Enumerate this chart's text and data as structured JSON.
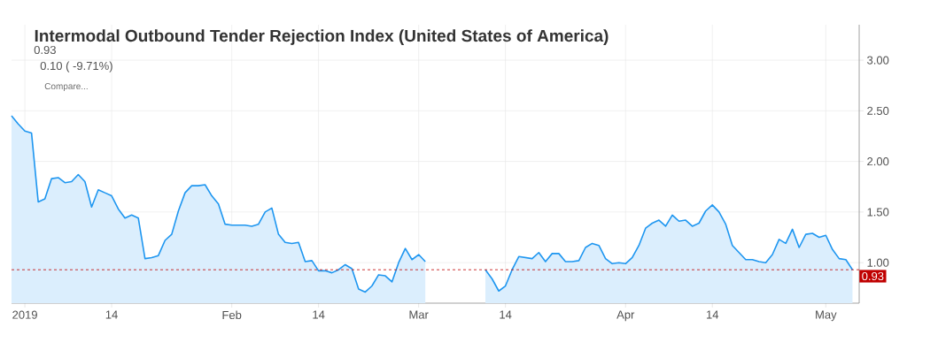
{
  "chart_data": {
    "type": "area",
    "title": "Intermodal Outbound Tender Rejection Index (United States of America)",
    "annotations": [
      "0.93",
      "0.10 ( -9.71%)",
      "Compare..."
    ],
    "x": [
      "2018-12-30",
      "2018-12-31",
      "2019-01-01",
      "2019-01-02",
      "2019-01-03",
      "2019-01-04",
      "2019-01-05",
      "2019-01-06",
      "2019-01-07",
      "2019-01-08",
      "2019-01-09",
      "2019-01-10",
      "2019-01-11",
      "2019-01-12",
      "2019-01-13",
      "2019-01-14",
      "2019-01-15",
      "2019-01-16",
      "2019-01-17",
      "2019-01-18",
      "2019-01-19",
      "2019-01-20",
      "2019-01-21",
      "2019-01-22",
      "2019-01-23",
      "2019-01-24",
      "2019-01-25",
      "2019-01-26",
      "2019-01-27",
      "2019-01-28",
      "2019-01-29",
      "2019-01-30",
      "2019-01-31",
      "2019-02-01",
      "2019-02-02",
      "2019-02-03",
      "2019-02-04",
      "2019-02-05",
      "2019-02-06",
      "2019-02-07",
      "2019-02-08",
      "2019-02-09",
      "2019-02-10",
      "2019-02-11",
      "2019-02-12",
      "2019-02-13",
      "2019-02-14",
      "2019-02-15",
      "2019-02-16",
      "2019-02-17",
      "2019-02-18",
      "2019-02-19",
      "2019-02-20",
      "2019-02-21",
      "2019-02-22",
      "2019-02-23",
      "2019-02-24",
      "2019-02-25",
      "2019-02-26",
      "2019-02-27",
      "2019-02-28",
      "2019-03-01",
      "2019-03-02",
      "2019-03-03",
      "2019-03-04",
      "2019-03-05",
      "2019-03-06",
      "2019-03-07",
      "2019-03-08",
      "2019-03-09",
      "2019-03-10",
      "2019-03-11",
      "2019-03-12",
      "2019-03-13",
      "2019-03-14",
      "2019-03-15",
      "2019-03-16",
      "2019-03-17",
      "2019-03-18",
      "2019-03-19",
      "2019-03-20",
      "2019-03-21",
      "2019-03-22",
      "2019-03-23",
      "2019-03-24",
      "2019-03-25",
      "2019-03-26",
      "2019-03-27",
      "2019-03-28",
      "2019-03-29",
      "2019-03-30",
      "2019-03-31",
      "2019-04-01",
      "2019-04-02",
      "2019-04-03",
      "2019-04-04",
      "2019-04-05",
      "2019-04-06",
      "2019-04-07",
      "2019-04-08",
      "2019-04-09",
      "2019-04-10",
      "2019-04-11",
      "2019-04-12",
      "2019-04-13",
      "2019-04-14",
      "2019-04-15",
      "2019-04-16",
      "2019-04-17",
      "2019-04-18",
      "2019-04-19",
      "2019-04-20",
      "2019-04-21",
      "2019-04-22",
      "2019-04-23",
      "2019-04-24",
      "2019-04-25",
      "2019-04-26",
      "2019-04-27",
      "2019-04-28",
      "2019-04-29",
      "2019-04-30",
      "2019-05-01",
      "2019-05-02",
      "2019-05-03",
      "2019-05-04",
      "2019-05-05"
    ],
    "series": [
      {
        "color": "#1e96f0",
        "values": [
          2.45,
          2.37,
          2.3,
          2.28,
          1.6,
          1.63,
          1.83,
          1.84,
          1.79,
          1.8,
          1.87,
          1.8,
          1.55,
          1.72,
          1.69,
          1.66,
          1.53,
          1.44,
          1.47,
          1.44,
          1.04,
          1.05,
          1.07,
          1.22,
          1.28,
          1.51,
          1.69,
          1.76,
          1.76,
          1.77,
          1.66,
          1.58,
          1.38,
          1.37,
          1.37,
          1.37,
          1.36,
          1.38,
          1.5,
          1.54,
          1.28,
          1.2,
          1.19,
          1.2,
          1.01,
          1.02,
          0.92,
          0.92,
          0.9,
          0.93,
          0.98,
          0.94,
          0.74,
          0.71,
          0.77,
          0.88,
          0.87,
          0.81,
          1.0,
          1.14,
          1.03,
          1.08,
          1.01,
          null,
          null,
          null,
          null,
          null,
          null,
          null,
          null,
          0.93,
          0.84,
          0.72,
          0.77,
          0.93,
          1.06,
          1.05,
          1.04,
          1.1,
          1.01,
          1.09,
          1.09,
          1.01,
          1.01,
          1.02,
          1.15,
          1.19,
          1.17,
          1.04,
          0.99,
          1.0,
          0.99,
          1.05,
          1.17,
          1.34,
          1.39,
          1.42,
          1.36,
          1.47,
          1.41,
          1.42,
          1.36,
          1.39,
          1.51,
          1.57,
          1.5,
          1.38,
          1.17,
          1.1,
          1.03,
          1.03,
          1.01,
          1.0,
          1.08,
          1.23,
          1.19,
          1.33,
          1.15,
          1.28,
          1.29,
          1.25,
          1.27,
          1.13,
          1.04,
          1.03,
          0.93
        ]
      }
    ],
    "xlim": [
      "2018-12-30",
      "2019-05-06"
    ],
    "xticks": [
      {
        "value": "2019-01-01",
        "label": "2019"
      },
      {
        "value": "2019-01-14",
        "label": "14"
      },
      {
        "value": "2019-02-01",
        "label": "Feb"
      },
      {
        "value": "2019-02-14",
        "label": "14"
      },
      {
        "value": "2019-03-01",
        "label": "Mar"
      },
      {
        "value": "2019-03-14",
        "label": "14"
      },
      {
        "value": "2019-04-01",
        "label": "Apr"
      },
      {
        "value": "2019-04-14",
        "label": "14"
      },
      {
        "value": "2019-05-01",
        "label": "May"
      }
    ],
    "ylim": [
      0.6,
      3.35
    ],
    "yticks": [
      {
        "value": 1,
        "label": "1.00"
      },
      {
        "value": 1.5,
        "label": "1.50"
      },
      {
        "value": 2,
        "label": "2.00"
      },
      {
        "value": 2.5,
        "label": "2.50"
      },
      {
        "value": 3,
        "label": "3.00"
      }
    ],
    "ref_lines": [
      {
        "axis": "y",
        "value": 0.93,
        "label": "0.93",
        "color": "#c00000",
        "line_style": "dashed"
      }
    ],
    "grid": true
  }
}
